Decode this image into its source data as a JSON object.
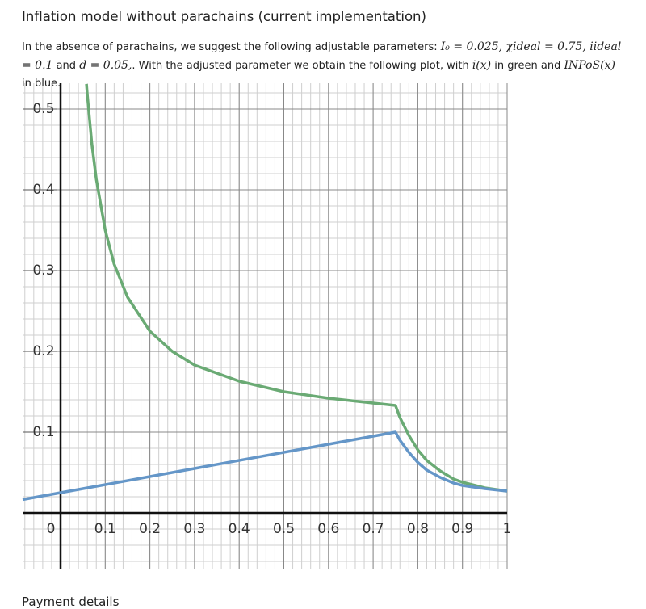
{
  "header": {
    "title": "Inflation model without parachains (current implementation)"
  },
  "paragraph": [
    "In the absence of parachains, we suggest the following adjustable parameters: ",
    "I₀ = 0.025, χideal = 0.75, iideal = 0.1",
    " and ",
    "d = 0.05,",
    ". With the adjusted parameter we obtain the following plot, with ",
    "i(x)",
    " in green and ",
    "INPoS(x)",
    " in blue."
  ],
  "chart_data": {
    "type": "line",
    "xlim": [
      -0.085,
      1.0
    ],
    "ylim": [
      -0.07,
      0.532
    ],
    "xticks": [
      0,
      0.1,
      0.2,
      0.3,
      0.4,
      0.5,
      0.6,
      0.7,
      0.8,
      0.9,
      1
    ],
    "yticks": [
      0.1,
      0.2,
      0.3,
      0.4,
      0.5
    ],
    "grid": true,
    "series": [
      {
        "color": "#6aaa74",
        "x": [
          0.058,
          0.06,
          0.07,
          0.08,
          0.1,
          0.12,
          0.15,
          0.2,
          0.25,
          0.3,
          0.4,
          0.5,
          0.6,
          0.7,
          0.75,
          0.76,
          0.78,
          0.8,
          0.82,
          0.85,
          0.88,
          0.9,
          0.95,
          1
        ],
        "values": [
          0.531,
          0.517,
          0.457,
          0.413,
          0.35,
          0.308,
          0.267,
          0.225,
          0.2,
          0.183,
          0.163,
          0.15,
          0.142,
          0.136,
          0.133,
          0.118,
          0.096,
          0.078,
          0.065,
          0.052,
          0.042,
          0.038,
          0.031,
          0.027
        ]
      },
      {
        "color": "#6496c8",
        "x": [
          -0.085,
          0,
          0.75,
          0.76,
          0.78,
          0.8,
          0.82,
          0.85,
          0.88,
          0.9,
          0.95,
          1
        ],
        "values": [
          0.0165,
          0.025,
          0.1,
          0.09,
          0.075,
          0.0625,
          0.053,
          0.044,
          0.037,
          0.034,
          0.03,
          0.027
        ]
      }
    ]
  },
  "footer": {
    "title": "Payment details"
  }
}
